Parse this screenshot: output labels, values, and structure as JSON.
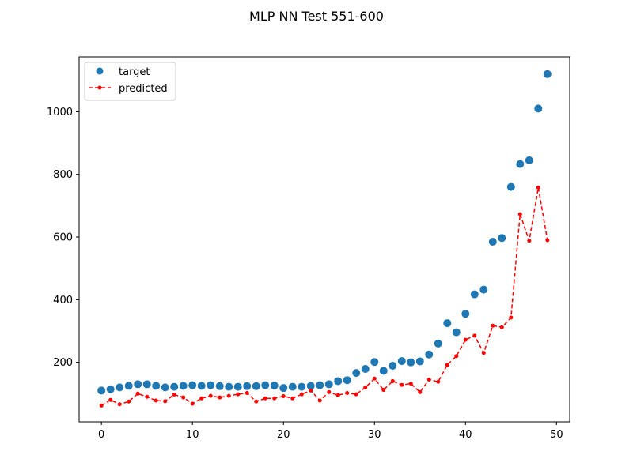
{
  "chart_data": {
    "type": "scatter",
    "title": "MLP NN Test 551-600",
    "xlabel": "",
    "ylabel": "",
    "xlim": [
      -2.45,
      51.45
    ],
    "ylim": [
      10,
      1175
    ],
    "xticks": [
      0,
      10,
      20,
      30,
      40,
      50
    ],
    "yticks": [
      200,
      400,
      600,
      800,
      1000
    ],
    "grid": false,
    "legend_position": "top-left",
    "x": [
      0,
      1,
      2,
      3,
      4,
      5,
      6,
      7,
      8,
      9,
      10,
      11,
      12,
      13,
      14,
      15,
      16,
      17,
      18,
      19,
      20,
      21,
      22,
      23,
      24,
      25,
      26,
      27,
      28,
      29,
      30,
      31,
      32,
      33,
      34,
      35,
      36,
      37,
      38,
      39,
      40,
      41,
      42,
      43,
      44,
      45,
      46,
      47,
      48,
      49
    ],
    "series": [
      {
        "name": "target",
        "style": "scatter",
        "color": "#1f77b4",
        "values": [
          110,
          114,
          120,
          125,
          130,
          130,
          125,
          120,
          122,
          125,
          127,
          125,
          127,
          124,
          122,
          122,
          124,
          124,
          127,
          126,
          118,
          122,
          122,
          125,
          127,
          130,
          140,
          143,
          166,
          179,
          201,
          173,
          189,
          204,
          200,
          203,
          225,
          260,
          325,
          296,
          355,
          417,
          432,
          585,
          597,
          760,
          833,
          845,
          1010,
          1120
        ]
      },
      {
        "name": "predicted",
        "style": "line-dashed-markers",
        "color": "#ff0000",
        "values": [
          62,
          80,
          66,
          75,
          100,
          90,
          78,
          76,
          97,
          88,
          68,
          85,
          93,
          88,
          93,
          98,
          102,
          75,
          85,
          85,
          92,
          85,
          98,
          110,
          78,
          105,
          95,
          102,
          98,
          120,
          148,
          112,
          140,
          128,
          132,
          105,
          145,
          138,
          192,
          220,
          272,
          285,
          230,
          317,
          312,
          343,
          673,
          588,
          758,
          590
        ]
      }
    ]
  }
}
